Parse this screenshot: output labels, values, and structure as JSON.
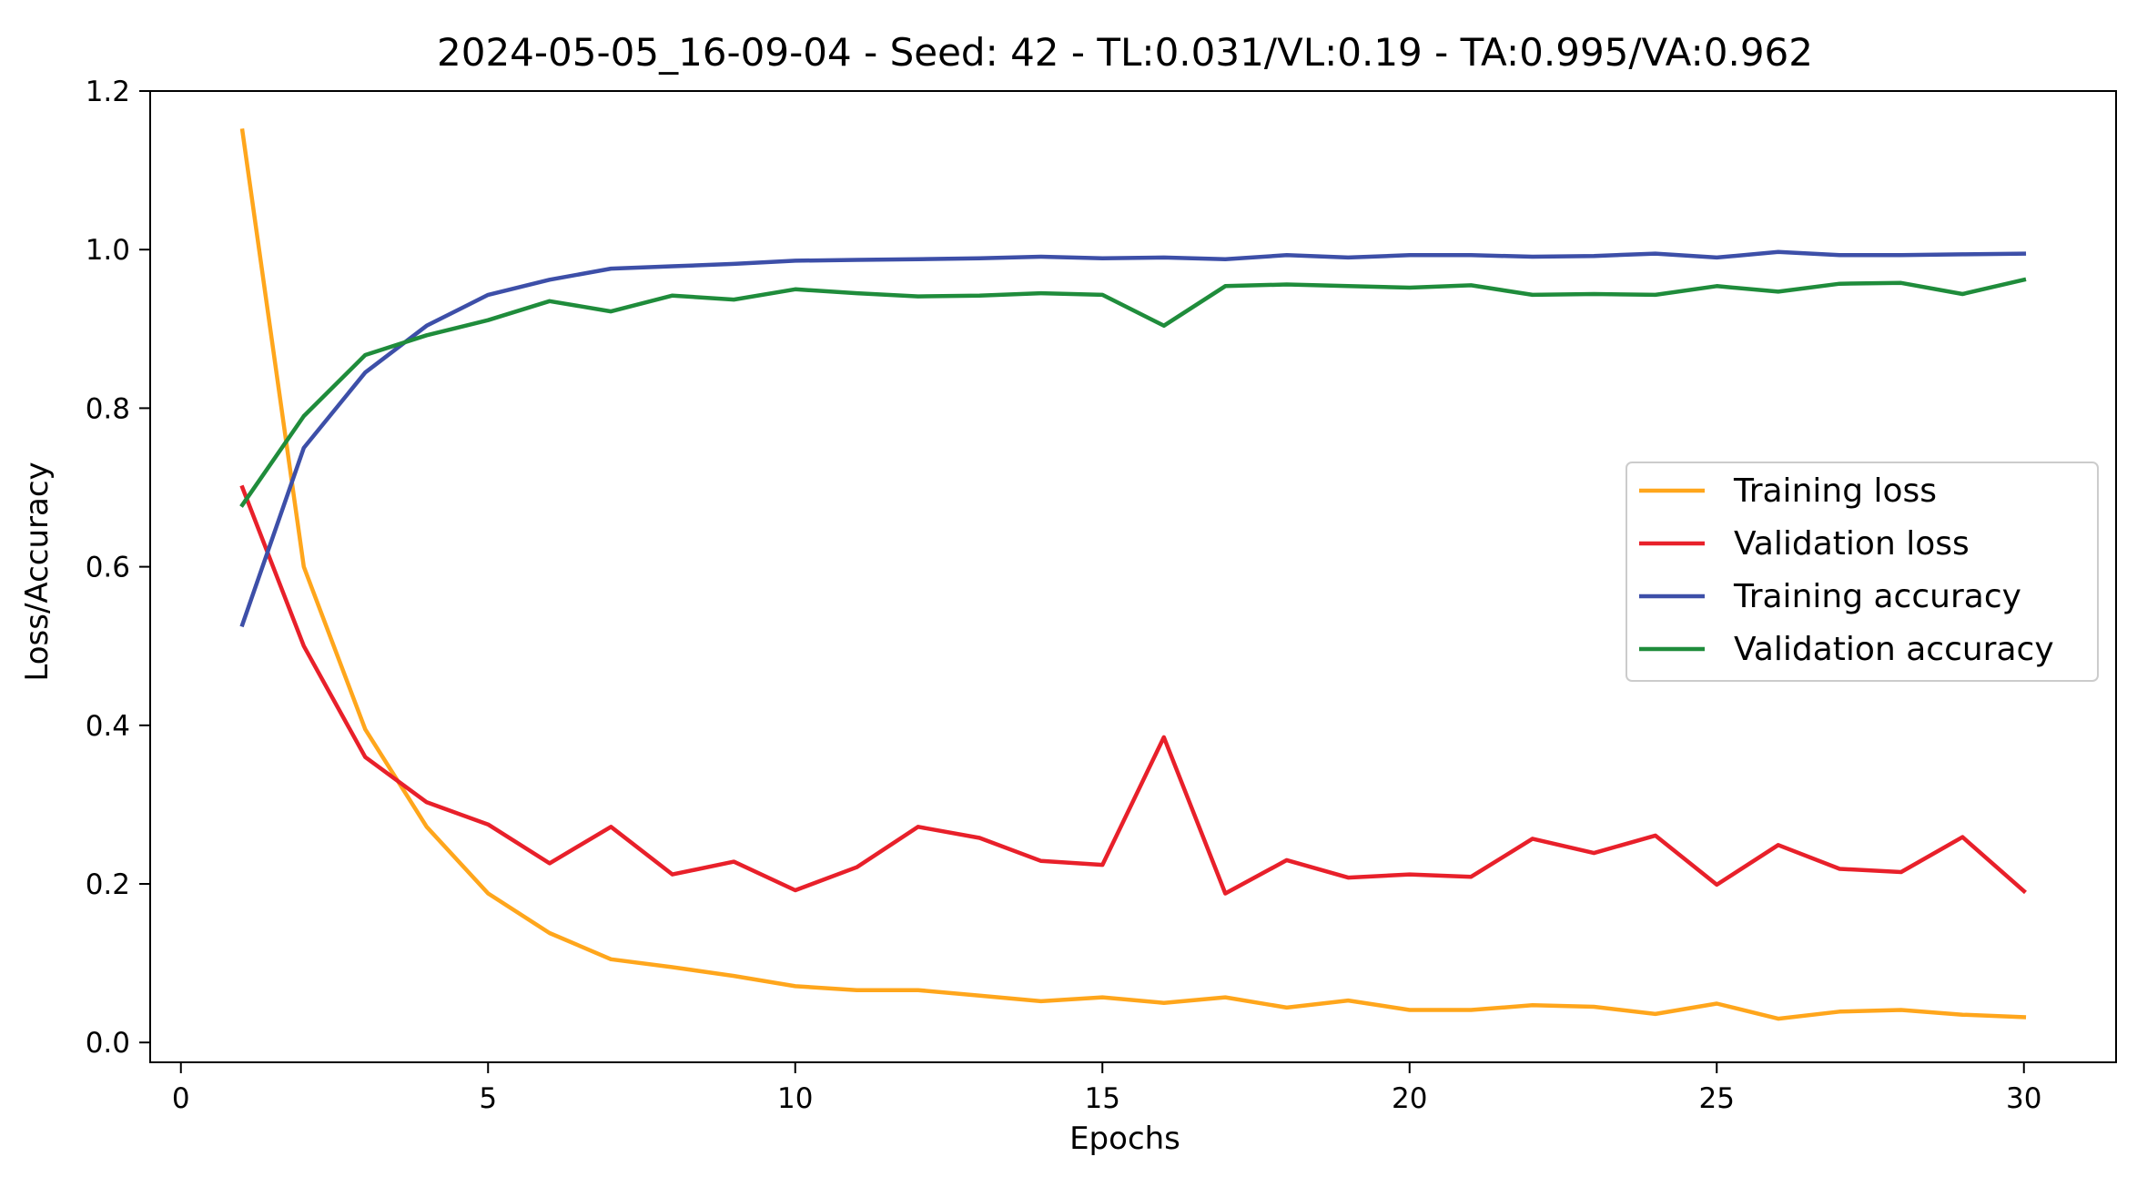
{
  "chart_data": {
    "type": "line",
    "title": "2024-05-05_16-09-04 - Seed: 42 - TL:0.031/VL:0.19 - TA:0.995/VA:0.962",
    "xlabel": "Epochs",
    "ylabel": "Loss/Accuracy",
    "xlim": [
      -0.5,
      31.5
    ],
    "ylim": [
      -0.025,
      1.2
    ],
    "xticks": [
      0,
      5,
      10,
      15,
      20,
      25,
      30
    ],
    "xtick_labels": [
      "0",
      "5",
      "10",
      "15",
      "20",
      "25",
      "30"
    ],
    "yticks": [
      0.0,
      0.2,
      0.4,
      0.6,
      0.8,
      1.0,
      1.2
    ],
    "ytick_labels": [
      "0.0",
      "0.2",
      "0.4",
      "0.6",
      "0.8",
      "1.0",
      "1.2"
    ],
    "grid": false,
    "legend_position": "center-right",
    "x": [
      1,
      2,
      3,
      4,
      5,
      6,
      7,
      8,
      9,
      10,
      11,
      12,
      13,
      14,
      15,
      16,
      17,
      18,
      19,
      20,
      21,
      22,
      23,
      24,
      25,
      26,
      27,
      28,
      29,
      30
    ],
    "series": [
      {
        "name": "Training loss",
        "color": "#ffa61c",
        "values": [
          1.15,
          0.6,
          0.395,
          0.272,
          0.188,
          0.138,
          0.105,
          0.095,
          0.084,
          0.071,
          0.066,
          0.066,
          0.059,
          0.052,
          0.057,
          0.05,
          0.057,
          0.044,
          0.053,
          0.041,
          0.041,
          0.047,
          0.045,
          0.036,
          0.049,
          0.03,
          0.039,
          0.041,
          0.035,
          0.032
        ]
      },
      {
        "name": "Validation loss",
        "color": "#e8202a",
        "values": [
          0.7,
          0.5,
          0.36,
          0.303,
          0.275,
          0.226,
          0.272,
          0.212,
          0.228,
          0.192,
          0.221,
          0.272,
          0.258,
          0.229,
          0.224,
          0.385,
          0.188,
          0.23,
          0.208,
          0.212,
          0.209,
          0.257,
          0.239,
          0.261,
          0.199,
          0.249,
          0.219,
          0.215,
          0.259,
          0.191
        ]
      },
      {
        "name": "Training accuracy",
        "color": "#3d4fa8",
        "values": [
          0.527,
          0.75,
          0.845,
          0.904,
          0.943,
          0.962,
          0.976,
          0.979,
          0.982,
          0.986,
          0.987,
          0.988,
          0.989,
          0.991,
          0.989,
          0.99,
          0.988,
          0.993,
          0.99,
          0.993,
          0.993,
          0.991,
          0.992,
          0.995,
          0.99,
          0.997,
          0.993,
          0.993,
          0.994,
          0.995
        ]
      },
      {
        "name": "Validation accuracy",
        "color": "#1f8c3b",
        "values": [
          0.678,
          0.79,
          0.867,
          0.892,
          0.911,
          0.935,
          0.922,
          0.942,
          0.937,
          0.95,
          0.945,
          0.941,
          0.942,
          0.945,
          0.943,
          0.904,
          0.954,
          0.956,
          0.954,
          0.952,
          0.955,
          0.943,
          0.944,
          0.943,
          0.954,
          0.947,
          0.957,
          0.958,
          0.944,
          0.962
        ]
      }
    ]
  }
}
